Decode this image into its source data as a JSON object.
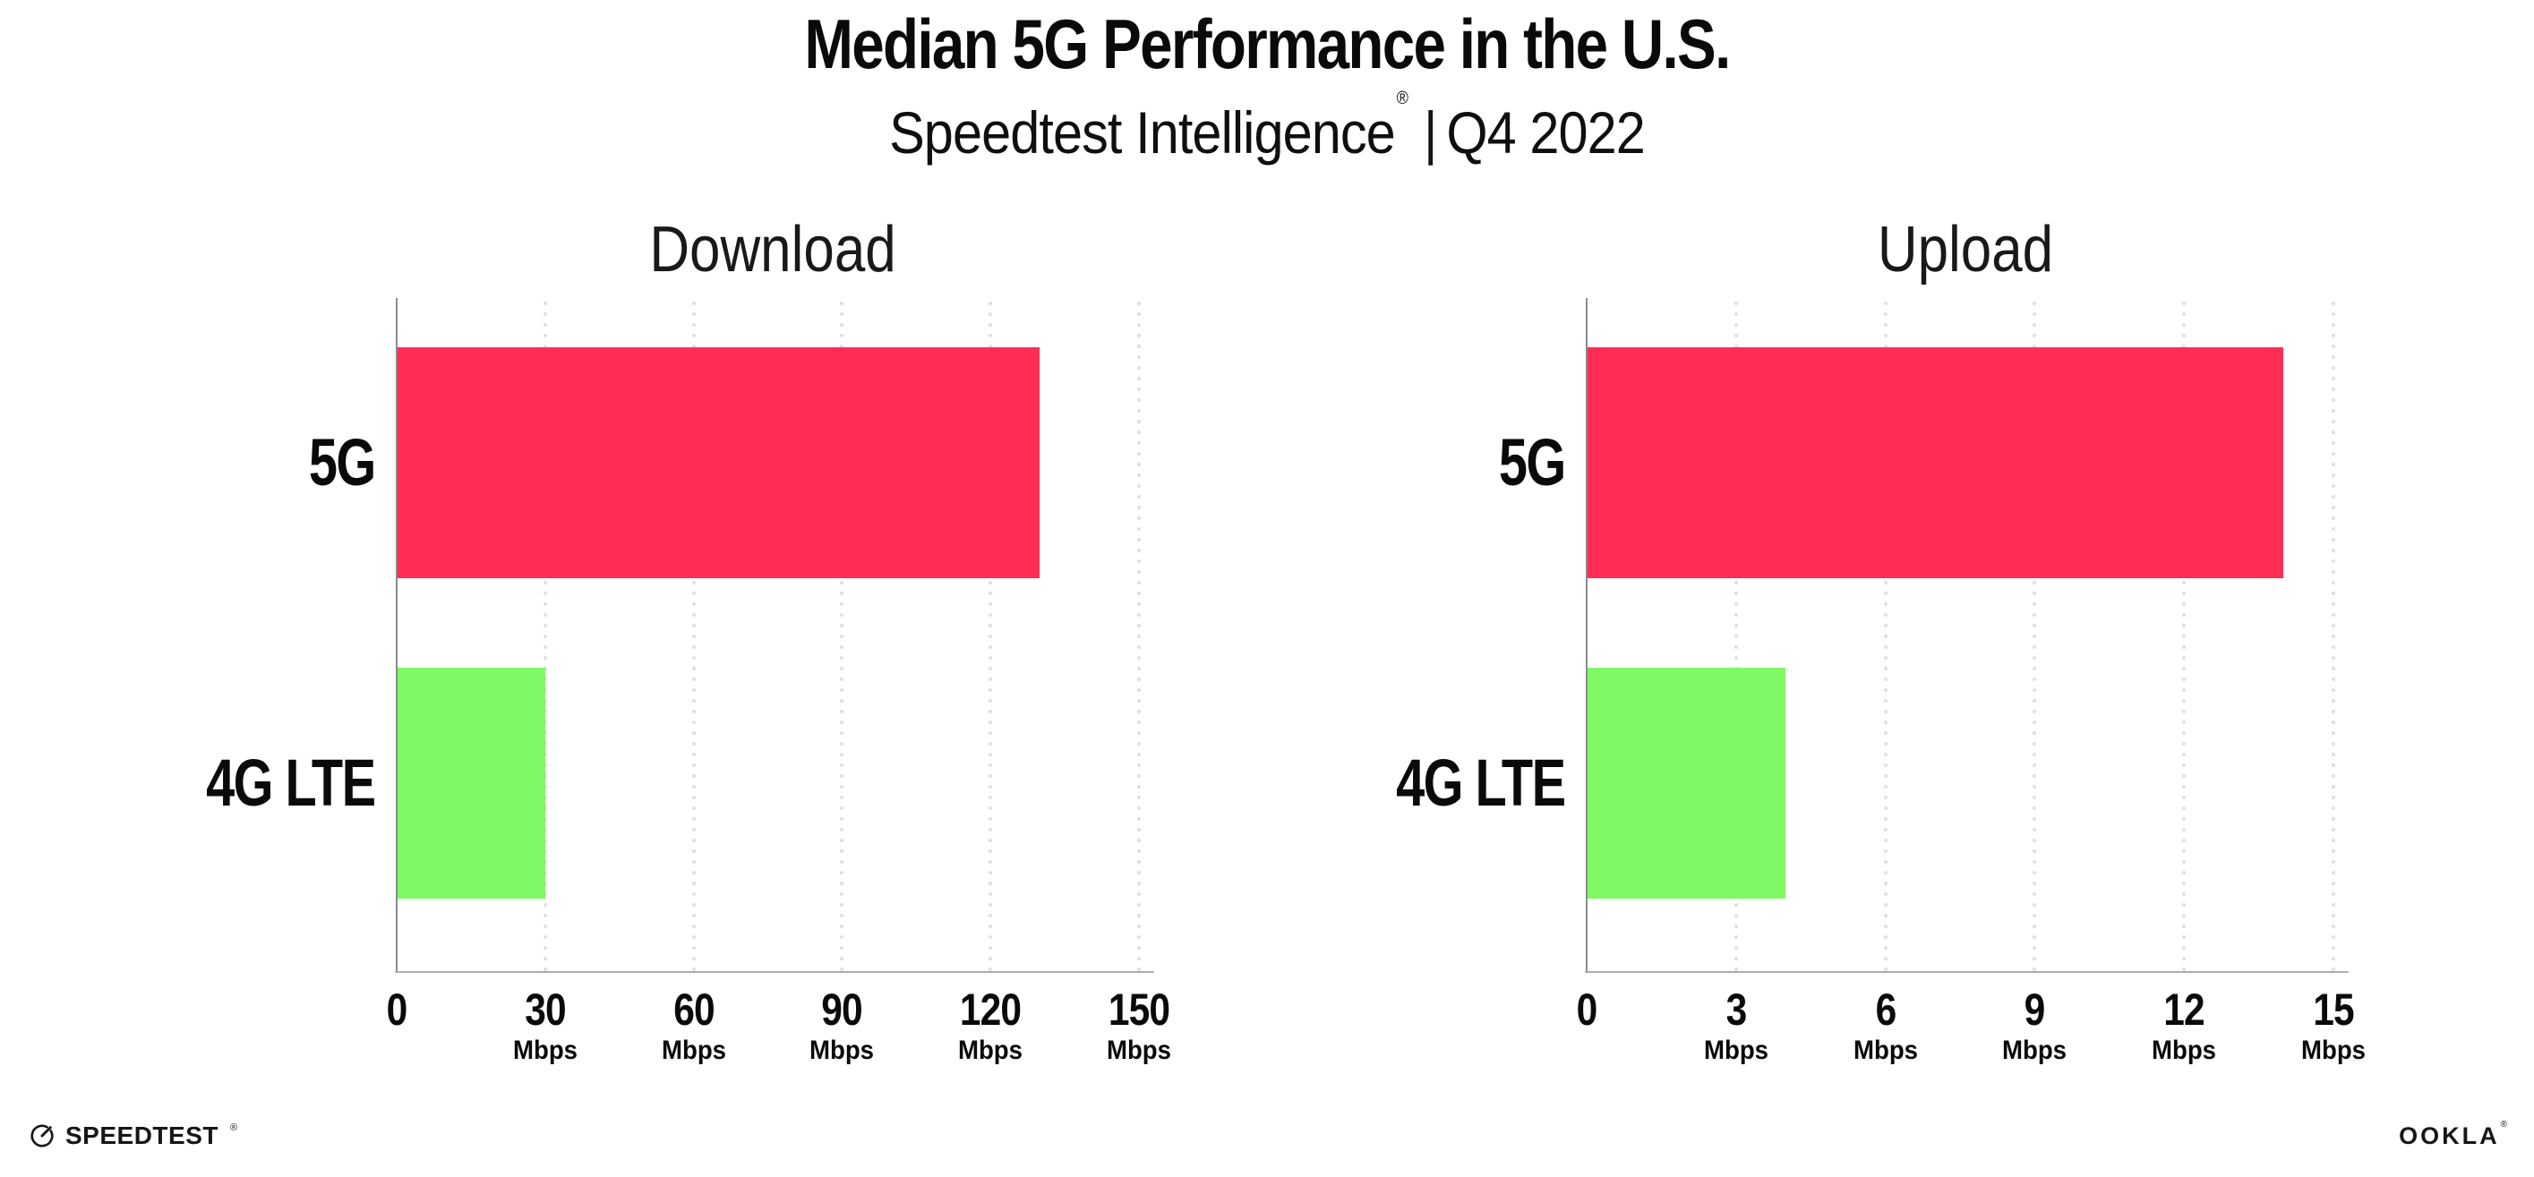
{
  "header": {
    "title": "Median 5G Performance in the U.S.",
    "subtitle_brand": "Speedtest Intelligence",
    "subtitle_reg": "®",
    "subtitle_sep": "|",
    "subtitle_period": "Q4 2022"
  },
  "chart_data": [
    {
      "type": "bar",
      "orientation": "horizontal",
      "title": "Download",
      "categories": [
        "5G",
        "4G LTE"
      ],
      "values": [
        130,
        30
      ],
      "unit": "Mbps",
      "xlim": [
        0,
        152
      ],
      "ticks": [
        0,
        30,
        60,
        90,
        120,
        150
      ],
      "grid": "dotted-vertical",
      "legend": "none",
      "bar_colors": [
        "#FF2D55",
        "#7FFA64"
      ]
    },
    {
      "type": "bar",
      "orientation": "horizontal",
      "title": "Upload",
      "categories": [
        "5G",
        "4G LTE"
      ],
      "values": [
        14,
        4
      ],
      "unit": "Mbps",
      "xlim": [
        0,
        15.2
      ],
      "ticks": [
        0,
        3,
        6,
        9,
        12,
        15
      ],
      "grid": "dotted-vertical",
      "legend": "none",
      "bar_colors": [
        "#FF2D55",
        "#7FFA64"
      ]
    }
  ],
  "colors": {
    "bar_5g": "#FF2D55",
    "bar_4g_lte": "#7FFA64",
    "gridline": "#DFDFEA",
    "x_axis_line": "#ABABB4",
    "y_axis_line": "#8A8A92",
    "text": "#0D0D0D",
    "background": "#FFFFFF"
  },
  "footer": {
    "speedtest_label": "SPEEDTEST",
    "speedtest_reg": "®",
    "ookla_label": "OOKLA",
    "ookla_reg": "®"
  }
}
